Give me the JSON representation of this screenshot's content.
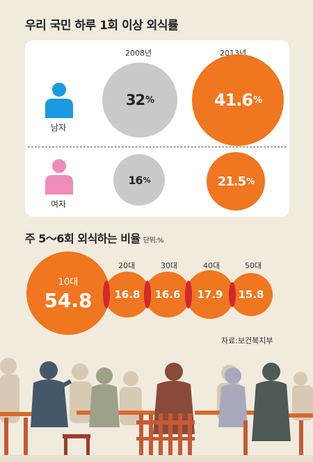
{
  "title": "우리 국민 하루 1회 이상 외식률",
  "years": [
    "2008년",
    "2013년"
  ],
  "genders": [
    {
      "label": "남자",
      "values": [
        "32",
        "41.6"
      ]
    },
    {
      "label": "여자",
      "values": [
        "16",
        "21.5"
      ]
    }
  ],
  "percent_sign": "%",
  "age_title": "주 5～6회 외식하는 비율",
  "age_unit": "단위:%",
  "source": "자료:보건복지부",
  "colors": {
    "orange": "#f0761f",
    "gray": "#c9c9c9",
    "male_icon": "#1a9ae0",
    "female_icon": "#f08cb8",
    "overlap": "#d2282e"
  },
  "chart_data": [
    {
      "type": "bubble",
      "title": "우리 국민 하루 1회 이상 외식률",
      "categories": [
        "2008년",
        "2013년"
      ],
      "series": [
        {
          "name": "남자",
          "values": [
            32,
            41.6
          ]
        },
        {
          "name": "여자",
          "values": [
            16,
            21.5
          ]
        }
      ],
      "unit": "%"
    },
    {
      "type": "bubble",
      "title": "주 5～6회 외식하는 비율",
      "categories": [
        "10대",
        "20대",
        "30대",
        "40대",
        "50대"
      ],
      "values": [
        54.8,
        16.8,
        16.6,
        17.9,
        15.8
      ],
      "unit": "단위:%"
    }
  ]
}
